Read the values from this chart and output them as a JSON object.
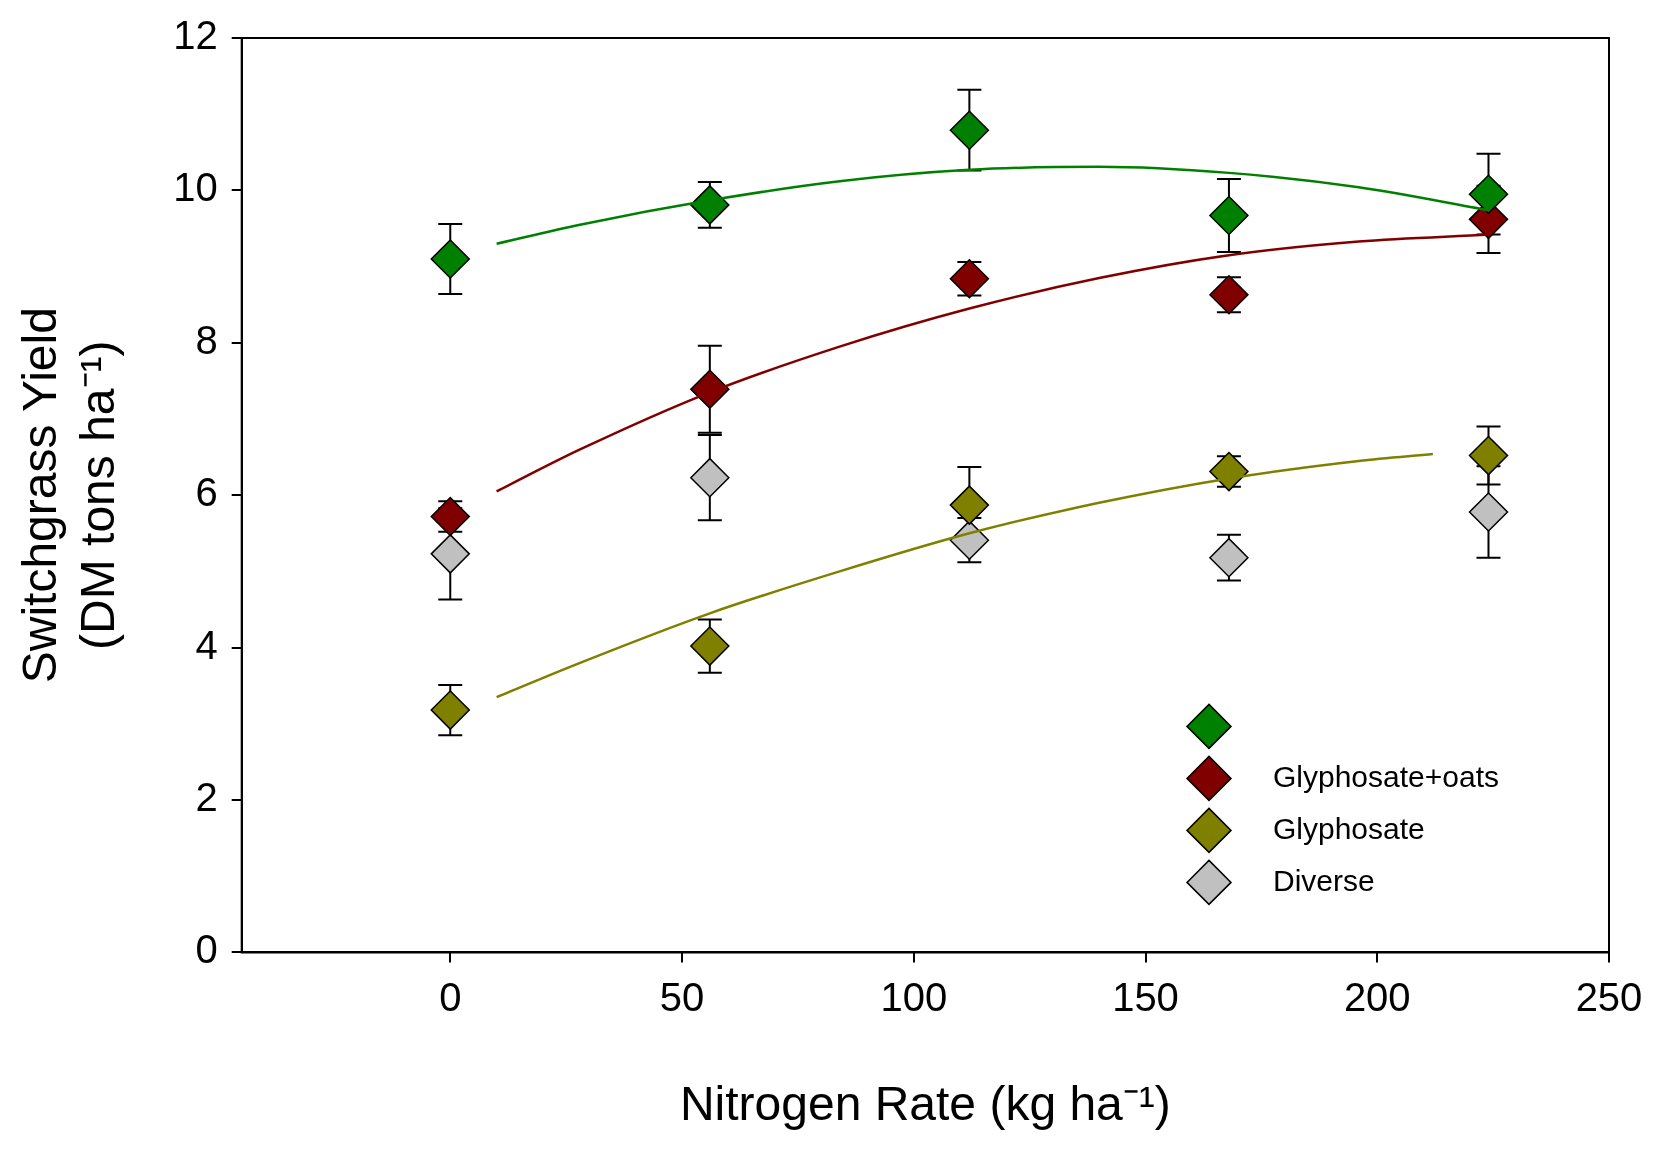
{
  "chart_data": {
    "type": "scatter",
    "xlabel": "Nitrogen Rate (kg ha⁻¹)",
    "ylabel": "Switchgrass Yield\n(DM tons ha⁻¹)",
    "xlim": [
      -45,
      250
    ],
    "xticks": [
      0,
      50,
      100,
      150,
      200,
      250
    ],
    "ylim": [
      0,
      12
    ],
    "yticks": [
      0,
      2,
      4,
      6,
      8,
      10,
      12
    ],
    "grid": false,
    "legend": "bottom right",
    "marker": "diamond",
    "series": [
      {
        "color": "#008000",
        "x": [
          0,
          56,
          112,
          168,
          224
        ],
        "values": [
          9.1,
          9.81,
          10.79,
          9.67,
          9.95
        ],
        "errors": [
          0.46,
          0.3,
          0.53,
          0.48,
          0.53
        ]
      },
      {
        "name": "Glyphosate+oats",
        "color": "#800000",
        "x": [
          0,
          56,
          112,
          168,
          224
        ],
        "values": [
          5.72,
          7.39,
          8.84,
          8.63,
          9.62
        ],
        "errors": [
          0.2,
          0.57,
          0.22,
          0.23,
          0.44
        ]
      },
      {
        "name": "Glyphosate",
        "color": "#808000",
        "x": [
          0,
          56,
          112,
          168,
          224
        ],
        "values": [
          3.18,
          4.02,
          5.87,
          6.31,
          6.52
        ],
        "errors": [
          0.33,
          0.35,
          0.5,
          0.2,
          0.38
        ]
      },
      {
        "name": "Diverse",
        "color": "#c0c0c0",
        "x": [
          0,
          56,
          112,
          168,
          224
        ],
        "values": [
          5.23,
          6.23,
          5.41,
          5.18,
          5.78
        ],
        "errors": [
          0.6,
          0.56,
          0.29,
          0.3,
          0.6
        ]
      },
      {
        "type": "line",
        "marker": "none",
        "color": "#008000",
        "x": [
          10,
          28,
          56,
          84,
          112,
          140,
          168,
          196,
          224
        ],
        "values": [
          9.3,
          9.55,
          9.87,
          10.12,
          10.27,
          10.31,
          10.23,
          10.04,
          9.74
        ]
      },
      {
        "type": "line",
        "marker": "none",
        "color": "#800000",
        "x": [
          10,
          28,
          56,
          84,
          112,
          140,
          168,
          196,
          224
        ],
        "values": [
          6.05,
          6.6,
          7.35,
          7.95,
          8.45,
          8.85,
          9.15,
          9.33,
          9.42
        ]
      },
      {
        "type": "line",
        "marker": "none",
        "color": "#808000",
        "x": [
          10,
          28,
          56,
          84,
          112,
          140,
          168,
          196,
          212
        ],
        "values": [
          3.35,
          3.8,
          4.45,
          5.0,
          5.5,
          5.9,
          6.22,
          6.45,
          6.54
        ]
      }
    ]
  }
}
